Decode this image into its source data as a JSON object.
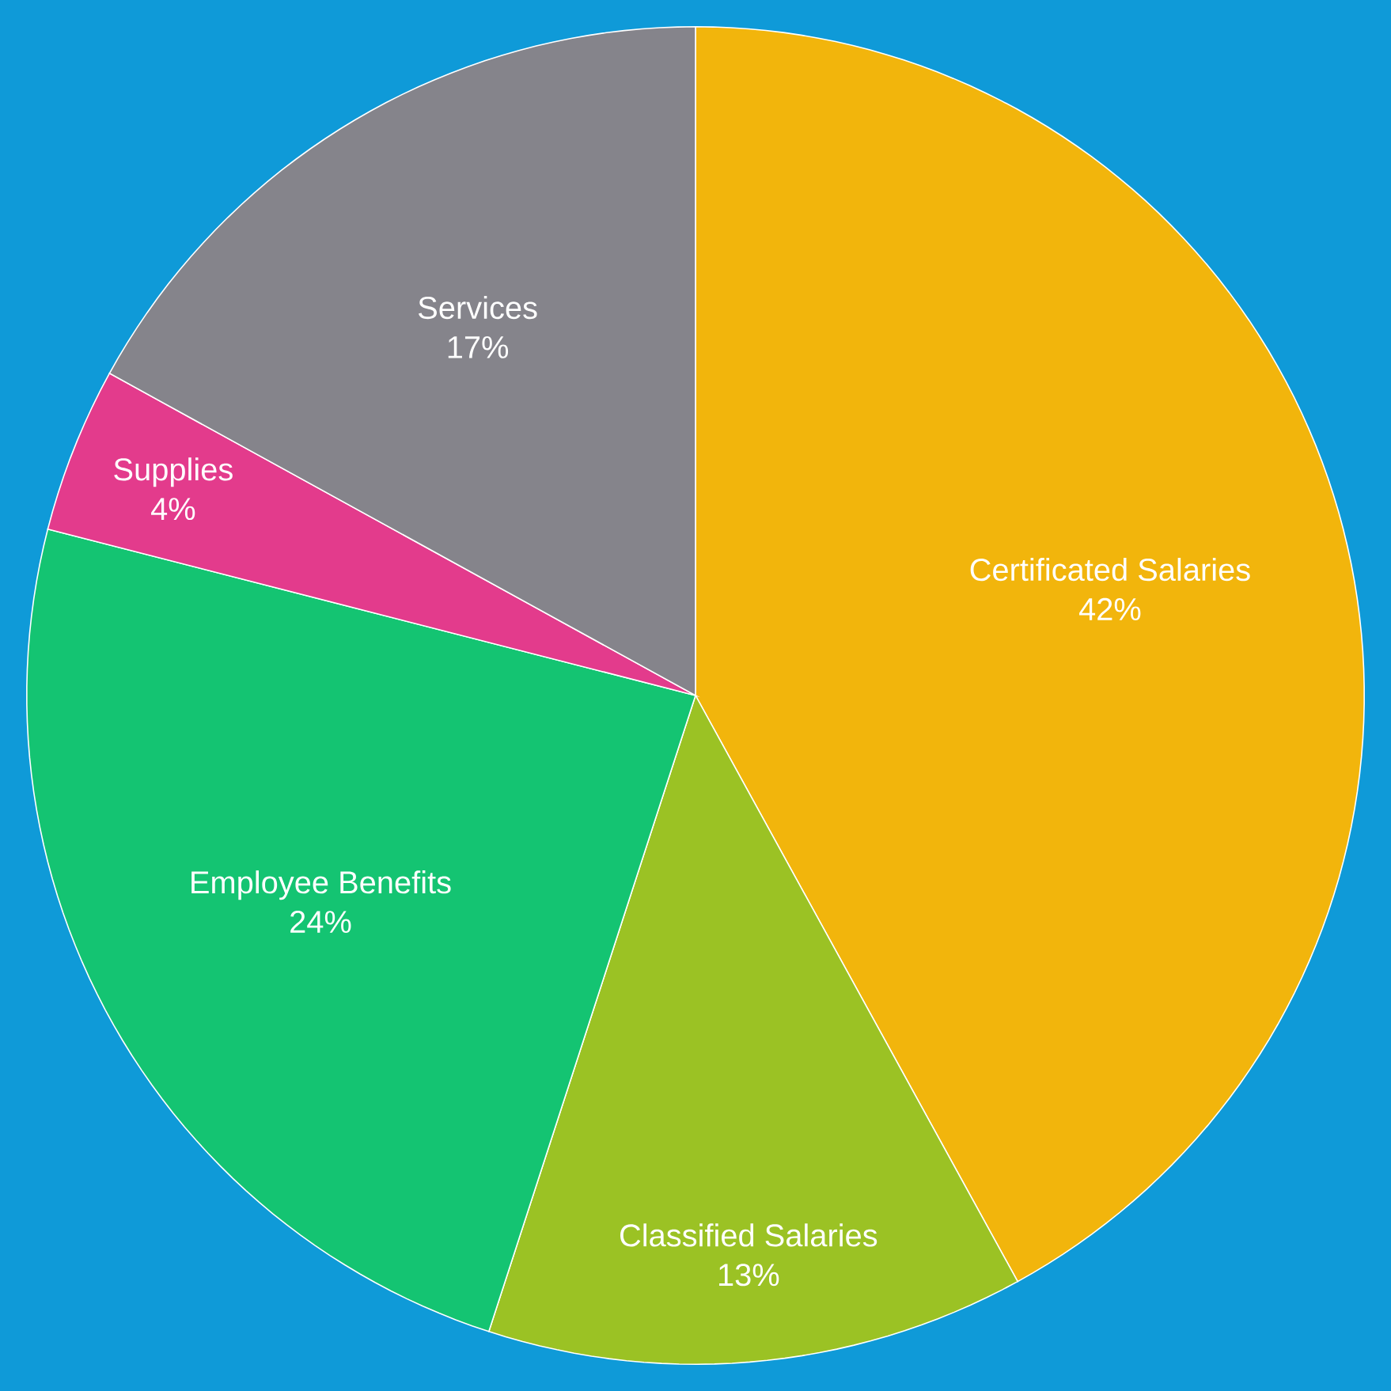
{
  "chart_data": {
    "type": "pie",
    "categories": [
      "Certificated Salaries",
      "Classified Salaries",
      "Employee Benefits",
      "Supplies",
      "Services"
    ],
    "values": [
      42,
      13,
      24,
      4,
      17
    ],
    "value_labels": [
      "42%",
      "13%",
      "24%",
      "4%",
      "17%"
    ],
    "colors": [
      "#f2b50c",
      "#9bc224",
      "#14c472",
      "#e33b8c",
      "#85848b"
    ]
  }
}
